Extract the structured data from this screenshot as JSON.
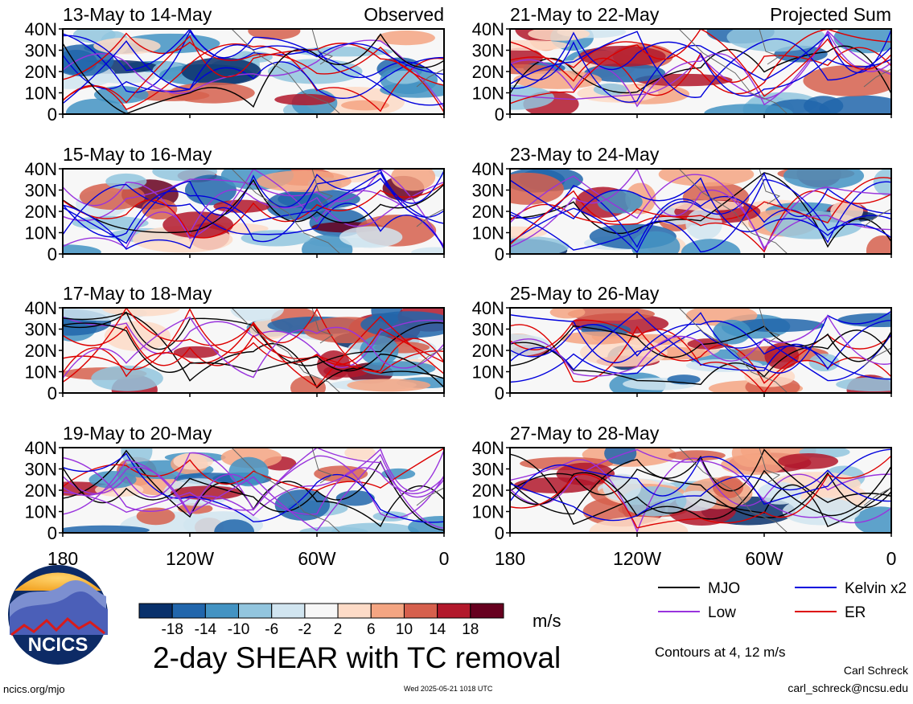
{
  "chart_data": {
    "type": "heatmap",
    "title": "2-day SHEAR with TC removal",
    "units": "m/s",
    "colorbar": {
      "ticks": [
        "-18",
        "-14",
        "-10",
        "-6",
        "-2",
        "2",
        "6",
        "10",
        "14",
        "18"
      ],
      "colors": [
        "#08306b",
        "#2166ac",
        "#4393c3",
        "#92c5de",
        "#d1e5f0",
        "#f7f7f7",
        "#fddbc7",
        "#f4a582",
        "#d6604d",
        "#b2182b",
        "#67001f"
      ]
    },
    "lat_ticks": [
      "40N",
      "30N",
      "20N",
      "10N",
      "0"
    ],
    "lon_ticks": [
      "180",
      "120W",
      "60W",
      "0"
    ],
    "columns": [
      {
        "header": "Observed",
        "panels": [
          "13-May to 14-May",
          "15-May to 16-May",
          "17-May to 18-May",
          "19-May to 20-May"
        ]
      },
      {
        "header": "Projected Sum",
        "panels": [
          "21-May to 22-May",
          "23-May to 24-May",
          "25-May to 26-May",
          "27-May to 28-May"
        ]
      }
    ],
    "legend": [
      {
        "label": "MJO",
        "color": "#000000"
      },
      {
        "label": "Kelvin x2",
        "color": "#0000dd"
      },
      {
        "label": "Low",
        "color": "#9933dd"
      },
      {
        "label": "ER",
        "color": "#dd0000"
      }
    ],
    "contour_note": "Contours at 4, 12 m/s"
  },
  "branding": {
    "logo_text": "NCICS",
    "site": "ncics.org/mjo",
    "timestamp": "Wed 2025-05-21 1018 UTC",
    "author": "Carl Schreck",
    "email": "carl_schreck@ncsu.edu"
  }
}
